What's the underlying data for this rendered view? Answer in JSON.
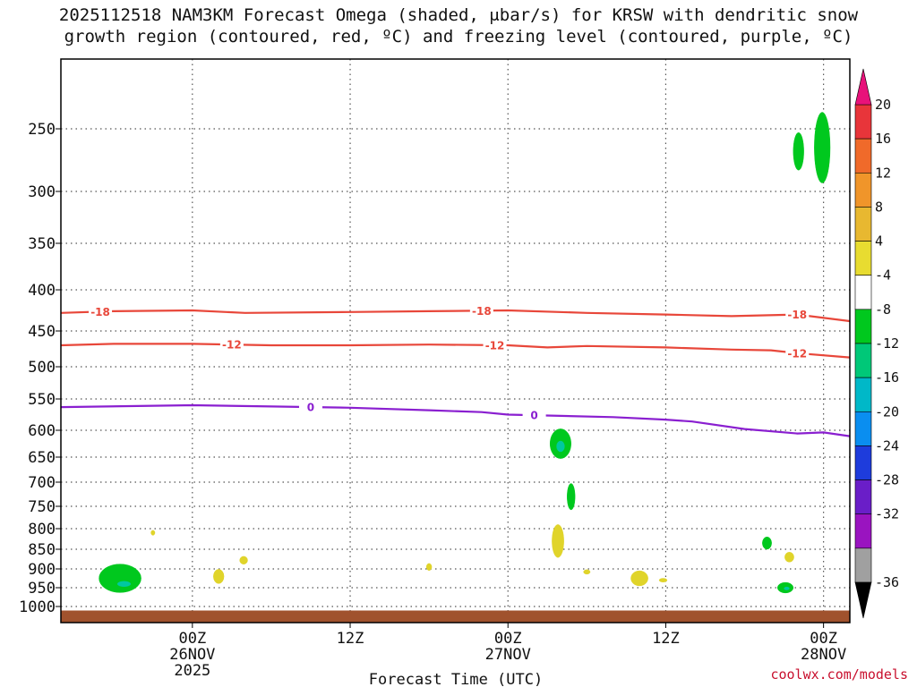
{
  "title_line1": "2025112518 NAM3KM Forecast Omega (shaded, μbar/s) for KRSW with dendritic snow",
  "title_line2": "growth region (contoured, red, ºC) and freezing level (contoured, purple, ºC)",
  "credit": "coolwx.com/models",
  "chart_data": {
    "type": "time-height cross section",
    "xlabel": "Forecast Time (UTC)",
    "x_hours_range": [
      -10,
      50
    ],
    "x_ticks": [
      {
        "hour": 0,
        "label": "00Z",
        "sub1": "26NOV",
        "sub2": "2025"
      },
      {
        "hour": 12,
        "label": "12Z",
        "sub1": "",
        "sub2": ""
      },
      {
        "hour": 24,
        "label": "00Z",
        "sub1": "27NOV",
        "sub2": ""
      },
      {
        "hour": 36,
        "label": "12Z",
        "sub1": "",
        "sub2": ""
      },
      {
        "hour": 48,
        "label": "00Z",
        "sub1": "28NOV",
        "sub2": ""
      }
    ],
    "y_axis": "pressure (hPa)",
    "y_range": [
      1020,
      200
    ],
    "y_ticks": [
      250,
      300,
      350,
      400,
      450,
      500,
      550,
      600,
      650,
      700,
      750,
      800,
      850,
      900,
      950,
      1000
    ],
    "surface": {
      "color": "#a0522d",
      "pressure": 1005
    },
    "contours": [
      {
        "name": "dgz-18",
        "label": "-18",
        "color": "#e8473a",
        "label_hours": [
          -7,
          22,
          46
        ],
        "points": [
          [
            -10,
            428
          ],
          [
            -6,
            426
          ],
          [
            0,
            425
          ],
          [
            4,
            428
          ],
          [
            12,
            427
          ],
          [
            18,
            426
          ],
          [
            24,
            425
          ],
          [
            30,
            428
          ],
          [
            36,
            430
          ],
          [
            41,
            432
          ],
          [
            46,
            430
          ],
          [
            50,
            438
          ]
        ]
      },
      {
        "name": "dgz-12",
        "label": "-12",
        "color": "#e8473a",
        "label_hours": [
          3,
          23,
          46
        ],
        "points": [
          [
            -10,
            470
          ],
          [
            -6,
            468
          ],
          [
            0,
            468
          ],
          [
            6,
            470
          ],
          [
            12,
            470
          ],
          [
            18,
            469
          ],
          [
            24,
            470
          ],
          [
            27,
            473
          ],
          [
            30,
            471
          ],
          [
            36,
            473
          ],
          [
            41,
            476
          ],
          [
            44,
            477
          ],
          [
            46,
            481
          ],
          [
            50,
            487
          ]
        ]
      },
      {
        "name": "freezing-level",
        "label": "0",
        "color": "#8a1fd0",
        "label_hours": [
          9,
          26
        ],
        "points": [
          [
            -10,
            563
          ],
          [
            0,
            560
          ],
          [
            6,
            562
          ],
          [
            12,
            564
          ],
          [
            18,
            568
          ],
          [
            22,
            571
          ],
          [
            24,
            575
          ],
          [
            28,
            577
          ],
          [
            32,
            579
          ],
          [
            36,
            583
          ],
          [
            38,
            586
          ],
          [
            42,
            598
          ],
          [
            46,
            606
          ],
          [
            48,
            604
          ],
          [
            50,
            611
          ]
        ]
      }
    ],
    "omega_areas": [
      {
        "color": "#00c81e",
        "hour": -5.5,
        "p": 925,
        "dh": 1.6,
        "dp": 75,
        "value_range": "-8 to -4"
      },
      {
        "color": "#00c8a0",
        "hour": -5.2,
        "p": 940,
        "dh": 0.5,
        "dp": 14,
        "value_range": "-12 to -8"
      },
      {
        "color": "#00c81e",
        "hour": 46.1,
        "p": 268,
        "dh": 0.4,
        "dp": 30,
        "value_range": "-8 to -4"
      },
      {
        "color": "#00c81e",
        "hour": 47.9,
        "p": 265,
        "dh": 0.6,
        "dp": 55,
        "value_range": "-8 to -4"
      },
      {
        "color": "#00c81e",
        "hour": 28.0,
        "p": 625,
        "dh": 0.8,
        "dp": 55,
        "value_range": "-8 to -4"
      },
      {
        "color": "#00c8a0",
        "hour": 28.0,
        "p": 630,
        "dh": 0.3,
        "dp": 20,
        "value_range": "-12 to -8"
      },
      {
        "color": "#00c81e",
        "hour": 28.8,
        "p": 730,
        "dh": 0.3,
        "dp": 55,
        "value_range": "-8 to -4"
      },
      {
        "color": "#00c81e",
        "hour": 43.7,
        "p": 835,
        "dh": 0.35,
        "dp": 30,
        "value_range": "-8 to -4"
      },
      {
        "color": "#00c81e",
        "hour": 45.1,
        "p": 950,
        "dh": 0.6,
        "dp": 28,
        "value_range": "-8 to -4"
      },
      {
        "color": "#00c8a0",
        "hour": 45.2,
        "p": 952,
        "dh": 0.2,
        "dp": 8,
        "value_range": "-12 to -8"
      },
      {
        "color": "#e0d42a",
        "hour": -3.0,
        "p": 810,
        "dh": 0.15,
        "dp": 12,
        "value_range": "4 to 8"
      },
      {
        "color": "#e0d42a",
        "hour": 2.0,
        "p": 920,
        "dh": 0.4,
        "dp": 38,
        "value_range": "4 to 8"
      },
      {
        "color": "#e0d42a",
        "hour": 3.9,
        "p": 878,
        "dh": 0.3,
        "dp": 20,
        "value_range": "4 to 8"
      },
      {
        "color": "#e0d42a",
        "hour": 18.0,
        "p": 895,
        "dh": 0.2,
        "dp": 18,
        "value_range": "4 to 8"
      },
      {
        "color": "#e0d42a",
        "hour": 27.8,
        "p": 830,
        "dh": 0.45,
        "dp": 80,
        "value_range": "4 to 8"
      },
      {
        "color": "#e0d42a",
        "hour": 30.0,
        "p": 908,
        "dh": 0.25,
        "dp": 12,
        "value_range": "4 to 8"
      },
      {
        "color": "#e0d42a",
        "hour": 34.0,
        "p": 925,
        "dh": 0.65,
        "dp": 40,
        "value_range": "4 to 8"
      },
      {
        "color": "#e0d42a",
        "hour": 35.8,
        "p": 930,
        "dh": 0.3,
        "dp": 10,
        "value_range": "4 to 8"
      },
      {
        "color": "#e0d42a",
        "hour": 45.4,
        "p": 870,
        "dh": 0.35,
        "dp": 25,
        "value_range": "4 to 8"
      }
    ],
    "colorbar": {
      "labels": [
        "20",
        "16",
        "12",
        "8",
        "4",
        "-4",
        "-8",
        "-12",
        "-16",
        "-20",
        "-24",
        "-28",
        "-32",
        "-36"
      ],
      "top_arrow_color": "#e8127a",
      "bottom_arrow_color": "#000000",
      "segments": [
        "#e8353a",
        "#f06a2a",
        "#f0952a",
        "#e8b830",
        "#e8dc30",
        "#ffffff",
        "#00c81e",
        "#00c878",
        "#00b8c8",
        "#0a8ef0",
        "#1e3cdc",
        "#6a1ec8",
        "#9a14c0",
        "#a0a0a0"
      ]
    }
  }
}
